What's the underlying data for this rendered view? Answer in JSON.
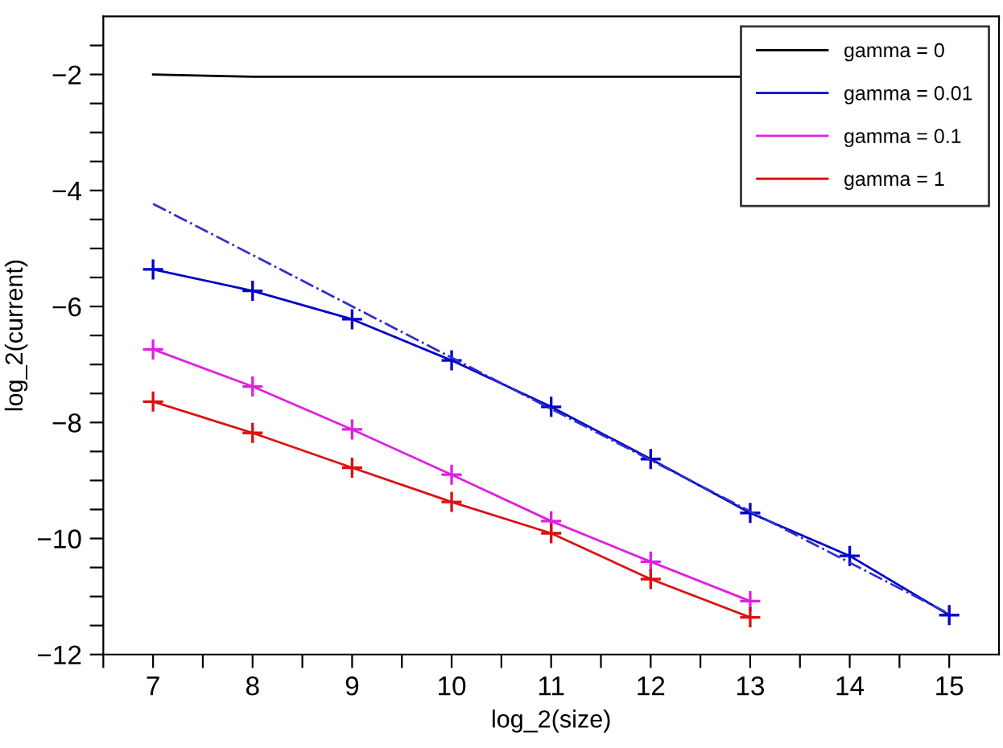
{
  "chart_data": {
    "type": "line",
    "xlabel": "log_2(size)",
    "ylabel": "log_2(current)",
    "xlim": [
      6.5,
      15.5
    ],
    "ylim": [
      -12,
      -1
    ],
    "xticks": [
      {
        "value": 6.5,
        "label": null
      },
      7,
      {
        "value": 7.5,
        "label": null
      },
      8,
      {
        "value": 8.5,
        "label": null
      },
      9,
      {
        "value": 9.5,
        "label": null
      },
      10,
      {
        "value": 10.5,
        "label": null
      },
      11,
      {
        "value": 11.5,
        "label": null
      },
      12,
      {
        "value": 12.5,
        "label": null
      },
      13,
      {
        "value": 13.5,
        "label": null
      },
      14,
      {
        "value": 14.5,
        "label": null
      },
      15
    ],
    "yticks": [
      {
        "value": -12,
        "label": "−12"
      },
      {
        "value": -11.5,
        "label": null
      },
      {
        "value": -11,
        "label": null
      },
      {
        "value": -10.5,
        "label": null
      },
      {
        "value": -10,
        "label": "−10"
      },
      {
        "value": -9.5,
        "label": null
      },
      {
        "value": -9,
        "label": null
      },
      {
        "value": -8.5,
        "label": null
      },
      {
        "value": -8,
        "label": "−8"
      },
      {
        "value": -7.5,
        "label": null
      },
      {
        "value": -7,
        "label": null
      },
      {
        "value": -6.5,
        "label": null
      },
      {
        "value": -6,
        "label": "−6"
      },
      {
        "value": -5.5,
        "label": null
      },
      {
        "value": -5,
        "label": null
      },
      {
        "value": -4.5,
        "label": null
      },
      {
        "value": -4,
        "label": "−4"
      },
      {
        "value": -3.5,
        "label": null
      },
      {
        "value": -3,
        "label": null
      },
      {
        "value": -2.5,
        "label": null
      },
      {
        "value": -2,
        "label": "−2"
      },
      {
        "value": -1.5,
        "label": null
      }
    ],
    "grid": false,
    "legend": "top right",
    "series": [
      {
        "name": "gamma = 0",
        "color": "#000000",
        "marker": "none",
        "x": [
          7,
          8,
          9,
          10,
          11,
          12,
          12.9
        ],
        "values": [
          -2.0,
          -2.04,
          -2.04,
          -2.04,
          -2.04,
          -2.04,
          -2.04
        ]
      },
      {
        "name": "gamma = 0.01",
        "color": "#0000cc",
        "marker": "cross",
        "x": [
          7,
          8,
          9,
          10,
          11,
          12,
          13,
          14,
          15
        ],
        "values": [
          -5.36,
          -5.73,
          -6.22,
          -6.93,
          -7.73,
          -8.63,
          -9.56,
          -10.3,
          -11.32
        ]
      },
      {
        "name": "gamma = 0.1",
        "color": "#e020e0",
        "marker": "cross",
        "x": [
          7,
          8,
          9,
          10,
          11,
          12,
          13
        ],
        "values": [
          -6.74,
          -7.38,
          -8.12,
          -8.9,
          -9.7,
          -10.4,
          -11.08
        ]
      },
      {
        "name": "gamma = 1",
        "color": "#dd1010",
        "marker": "cross",
        "x": [
          7,
          8,
          9,
          10,
          11,
          12,
          13
        ],
        "values": [
          -7.64,
          -8.18,
          -8.78,
          -9.37,
          -9.91,
          -10.7,
          -11.36
        ]
      },
      {
        "color": "#3030cc",
        "marker": "none",
        "line_style": "dashdot",
        "x": [
          7,
          15
        ],
        "values": [
          -4.23,
          -11.3
        ]
      }
    ]
  }
}
